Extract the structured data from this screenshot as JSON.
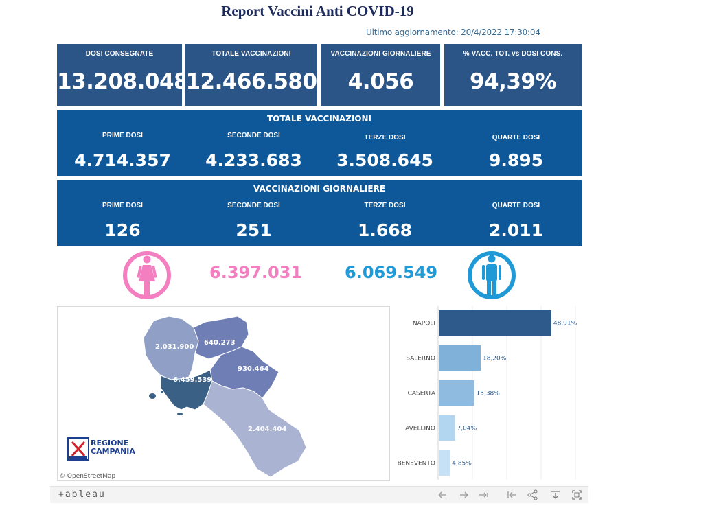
{
  "header": {
    "title": "Report Vaccini Anti COVID-19",
    "last_update": "Ultimo aggiornamento: 20/4/2022 17:30:04"
  },
  "kpis": [
    {
      "label": "DOSI  CONSEGNATE",
      "value": "13.208.048"
    },
    {
      "label": "TOTALE VACCINAZIONI",
      "value": "12.466.580"
    },
    {
      "label": "VACCINAZIONI GIORNALIERE",
      "value": "4.056"
    },
    {
      "label": "% VACC. TOT. vs DOSI CONS.",
      "value": "94,39%"
    }
  ],
  "totale_vaccinazioni": {
    "title": "TOTALE VACCINAZIONI",
    "cols": [
      {
        "label": "PRIME DOSI",
        "value": "4.714.357"
      },
      {
        "label": "SECONDE DOSI",
        "value": "4.233.683"
      },
      {
        "label": "TERZE DOSI",
        "value": "3.508.645"
      },
      {
        "label": "QUARTE DOSI",
        "value": "9.895"
      }
    ]
  },
  "vaccinazioni_giornaliere": {
    "title": "VACCINAZIONI GIORNALIERE",
    "cols": [
      {
        "label": "PRIME DOSI",
        "value": "126"
      },
      {
        "label": "SECONDE DOSI",
        "value": "251"
      },
      {
        "label": "TERZE DOSI",
        "value": "1.668"
      },
      {
        "label": "QUARTE DOSI",
        "value": "2.011"
      }
    ]
  },
  "gender": {
    "female_value": "6.397.031",
    "male_value": "6.069.549",
    "female_color": "#f47fc0",
    "male_color": "#1f9ad6",
    "female_icon": "female-icon",
    "male_icon": "male-icon"
  },
  "map": {
    "province_values": {
      "caserta": "2.031.900",
      "benevento": "640.273",
      "avellino": "930.464",
      "napoli": "6.459.539",
      "salerno": "2.404.404"
    },
    "attribution": "© OpenStreetMap",
    "logo_text_line1": "REGIONE",
    "logo_text_line2": "CAMPANIA"
  },
  "chart_data": {
    "type": "bar",
    "orientation": "horizontal",
    "categories": [
      "NAPOLI",
      "SALERNO",
      "CASERTA",
      "AVELLINO",
      "BENEVENTO"
    ],
    "values": [
      48.91,
      18.2,
      15.38,
      7.04,
      4.85
    ],
    "labels": [
      "48,91%",
      "18,20%",
      "15,38%",
      "7,04%",
      "4,85%"
    ],
    "colors": [
      "#2d5a8a",
      "#7fb1d9",
      "#8fbbe0",
      "#b3d6f0",
      "#c6e1f5"
    ],
    "grid": true
  },
  "toolbar": {
    "brand": "+ableau",
    "icons": [
      "undo-icon",
      "redo-icon",
      "revert-icon",
      "reset-icon",
      "share-icon",
      "download-icon",
      "fullscreen-icon"
    ]
  }
}
